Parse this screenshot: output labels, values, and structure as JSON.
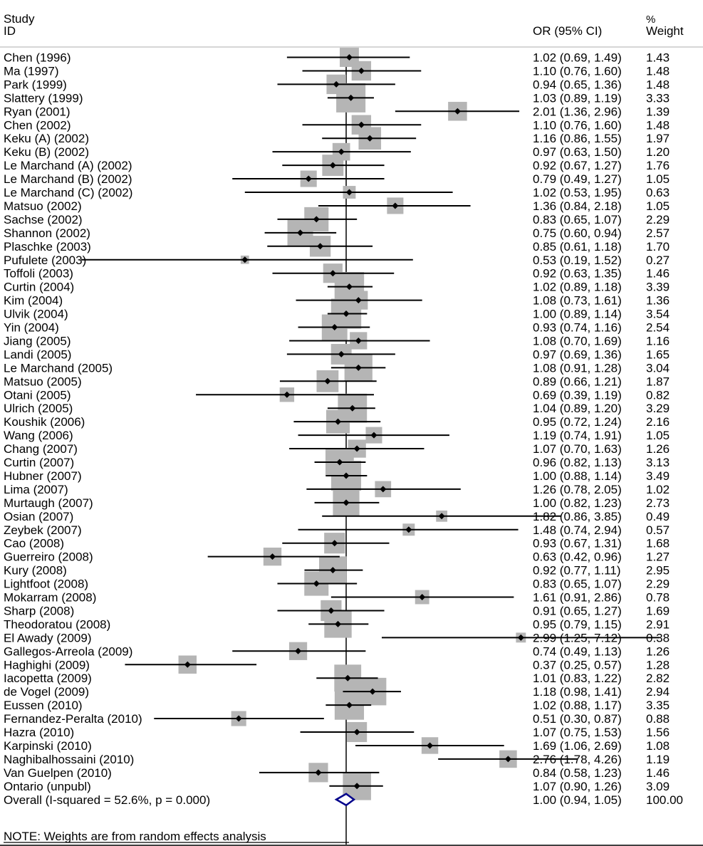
{
  "header": {
    "study_label": "Study",
    "id_label": "ID",
    "or_label": "OR (95% CI)",
    "pct_label": "%",
    "weight_label": "Weight"
  },
  "note": "NOTE: Weights are from random effects analysis",
  "chart_data": {
    "type": "forest",
    "title": "",
    "xscale": "log",
    "xlim": [
      0.14,
      12.0
    ],
    "null_line": 1.0,
    "grid": false,
    "legend": "none",
    "colors": {
      "square": "#b5b5b5",
      "point": "#000000",
      "diamond": "#00008b"
    },
    "studies": [
      {
        "id": "Chen (1996)",
        "or": 1.02,
        "lo": 0.69,
        "hi": 1.49,
        "weight": 1.43,
        "label": "1.02 (0.69, 1.49)",
        "wlabel": "1.43"
      },
      {
        "id": "Ma (1997)",
        "or": 1.1,
        "lo": 0.76,
        "hi": 1.6,
        "weight": 1.48,
        "label": "1.10 (0.76, 1.60)",
        "wlabel": "1.48"
      },
      {
        "id": "Park (1999)",
        "or": 0.94,
        "lo": 0.65,
        "hi": 1.36,
        "weight": 1.48,
        "label": "0.94 (0.65, 1.36)",
        "wlabel": "1.48"
      },
      {
        "id": "Slattery (1999)",
        "or": 1.03,
        "lo": 0.89,
        "hi": 1.19,
        "weight": 3.33,
        "label": "1.03 (0.89, 1.19)",
        "wlabel": "3.33"
      },
      {
        "id": "Ryan (2001)",
        "or": 2.01,
        "lo": 1.36,
        "hi": 2.96,
        "weight": 1.39,
        "label": "2.01 (1.36, 2.96)",
        "wlabel": "1.39"
      },
      {
        "id": "Chen (2002)",
        "or": 1.1,
        "lo": 0.76,
        "hi": 1.6,
        "weight": 1.48,
        "label": "1.10 (0.76, 1.60)",
        "wlabel": "1.48"
      },
      {
        "id": "Keku (A) (2002)",
        "or": 1.16,
        "lo": 0.86,
        "hi": 1.55,
        "weight": 1.97,
        "label": "1.16 (0.86, 1.55)",
        "wlabel": "1.97"
      },
      {
        "id": "Keku (B) (2002)",
        "or": 0.97,
        "lo": 0.63,
        "hi": 1.5,
        "weight": 1.2,
        "label": "0.97 (0.63, 1.50)",
        "wlabel": "1.20"
      },
      {
        "id": "Le Marchand (A) (2002)",
        "or": 0.92,
        "lo": 0.67,
        "hi": 1.27,
        "weight": 1.76,
        "label": "0.92 (0.67, 1.27)",
        "wlabel": "1.76"
      },
      {
        "id": "Le Marchand (B) (2002)",
        "or": 0.79,
        "lo": 0.49,
        "hi": 1.27,
        "weight": 1.05,
        "label": "0.79 (0.49, 1.27)",
        "wlabel": "1.05"
      },
      {
        "id": "Le Marchand (C) (2002)",
        "or": 1.02,
        "lo": 0.53,
        "hi": 1.95,
        "weight": 0.63,
        "label": "1.02 (0.53, 1.95)",
        "wlabel": "0.63"
      },
      {
        "id": "Matsuo (2002)",
        "or": 1.36,
        "lo": 0.84,
        "hi": 2.18,
        "weight": 1.05,
        "label": "1.36 (0.84, 2.18)",
        "wlabel": "1.05"
      },
      {
        "id": "Sachse (2002)",
        "or": 0.83,
        "lo": 0.65,
        "hi": 1.07,
        "weight": 2.29,
        "label": "0.83 (0.65, 1.07)",
        "wlabel": "2.29"
      },
      {
        "id": "Shannon (2002)",
        "or": 0.75,
        "lo": 0.6,
        "hi": 0.94,
        "weight": 2.57,
        "label": "0.75 (0.60, 0.94)",
        "wlabel": "2.57"
      },
      {
        "id": "Plaschke (2003)",
        "or": 0.85,
        "lo": 0.61,
        "hi": 1.18,
        "weight": 1.7,
        "label": "0.85 (0.61, 1.18)",
        "wlabel": "1.70"
      },
      {
        "id": "Pufulete (2003)",
        "or": 0.53,
        "lo": 0.19,
        "hi": 1.52,
        "weight": 0.27,
        "label": "0.53 (0.19, 1.52)",
        "wlabel": "0.27"
      },
      {
        "id": "Toffoli (2003)",
        "or": 0.92,
        "lo": 0.63,
        "hi": 1.35,
        "weight": 1.46,
        "label": "0.92 (0.63, 1.35)",
        "wlabel": "1.46"
      },
      {
        "id": "Curtin (2004)",
        "or": 1.02,
        "lo": 0.89,
        "hi": 1.18,
        "weight": 3.39,
        "label": "1.02 (0.89, 1.18)",
        "wlabel": "3.39"
      },
      {
        "id": "Kim (2004)",
        "or": 1.08,
        "lo": 0.73,
        "hi": 1.61,
        "weight": 1.36,
        "label": "1.08 (0.73, 1.61)",
        "wlabel": "1.36"
      },
      {
        "id": "Ulvik (2004)",
        "or": 1.0,
        "lo": 0.89,
        "hi": 1.14,
        "weight": 3.54,
        "label": "1.00 (0.89, 1.14)",
        "wlabel": "3.54"
      },
      {
        "id": "Yin (2004)",
        "or": 0.93,
        "lo": 0.74,
        "hi": 1.16,
        "weight": 2.54,
        "label": "0.93 (0.74, 1.16)",
        "wlabel": "2.54"
      },
      {
        "id": "Jiang (2005)",
        "or": 1.08,
        "lo": 0.7,
        "hi": 1.69,
        "weight": 1.16,
        "label": "1.08 (0.70, 1.69)",
        "wlabel": "1.16"
      },
      {
        "id": "Landi (2005)",
        "or": 0.97,
        "lo": 0.69,
        "hi": 1.36,
        "weight": 1.65,
        "label": "0.97 (0.69, 1.36)",
        "wlabel": "1.65"
      },
      {
        "id": "Le Marchand (2005)",
        "or": 1.08,
        "lo": 0.91,
        "hi": 1.28,
        "weight": 3.04,
        "label": "1.08 (0.91, 1.28)",
        "wlabel": "3.04"
      },
      {
        "id": "Matsuo (2005)",
        "or": 0.89,
        "lo": 0.66,
        "hi": 1.21,
        "weight": 1.87,
        "label": "0.89 (0.66, 1.21)",
        "wlabel": "1.87"
      },
      {
        "id": "Otani (2005)",
        "or": 0.69,
        "lo": 0.39,
        "hi": 1.19,
        "weight": 0.82,
        "label": "0.69 (0.39, 1.19)",
        "wlabel": "0.82"
      },
      {
        "id": "Ulrich (2005)",
        "or": 1.04,
        "lo": 0.89,
        "hi": 1.2,
        "weight": 3.29,
        "label": "1.04 (0.89, 1.20)",
        "wlabel": "3.29"
      },
      {
        "id": "Koushik (2006)",
        "or": 0.95,
        "lo": 0.72,
        "hi": 1.24,
        "weight": 2.16,
        "label": "0.95 (0.72, 1.24)",
        "wlabel": "2.16"
      },
      {
        "id": "Wang (2006)",
        "or": 1.19,
        "lo": 0.74,
        "hi": 1.91,
        "weight": 1.05,
        "label": "1.19 (0.74, 1.91)",
        "wlabel": "1.05"
      },
      {
        "id": "Chang (2007)",
        "or": 1.07,
        "lo": 0.7,
        "hi": 1.63,
        "weight": 1.26,
        "label": "1.07 (0.70, 1.63)",
        "wlabel": "1.26"
      },
      {
        "id": "Curtin (2007)",
        "or": 0.96,
        "lo": 0.82,
        "hi": 1.13,
        "weight": 3.13,
        "label": "0.96 (0.82, 1.13)",
        "wlabel": "3.13"
      },
      {
        "id": "Hubner (2007)",
        "or": 1.0,
        "lo": 0.88,
        "hi": 1.14,
        "weight": 3.49,
        "label": "1.00 (0.88, 1.14)",
        "wlabel": "3.49"
      },
      {
        "id": "Lima (2007)",
        "or": 1.26,
        "lo": 0.78,
        "hi": 2.05,
        "weight": 1.02,
        "label": "1.26 (0.78, 2.05)",
        "wlabel": "1.02"
      },
      {
        "id": "Murtaugh (2007)",
        "or": 1.0,
        "lo": 0.82,
        "hi": 1.23,
        "weight": 2.73,
        "label": "1.00 (0.82, 1.23)",
        "wlabel": "2.73"
      },
      {
        "id": "Osian (2007)",
        "or": 1.82,
        "lo": 0.86,
        "hi": 3.85,
        "weight": 0.49,
        "label": "1.82 (0.86, 3.85)",
        "wlabel": "0.49"
      },
      {
        "id": "Zeybek (2007)",
        "or": 1.48,
        "lo": 0.74,
        "hi": 2.94,
        "weight": 0.57,
        "label": "1.48 (0.74, 2.94)",
        "wlabel": "0.57"
      },
      {
        "id": "Cao (2008)",
        "or": 0.93,
        "lo": 0.67,
        "hi": 1.31,
        "weight": 1.68,
        "label": "0.93 (0.67, 1.31)",
        "wlabel": "1.68"
      },
      {
        "id": "Guerreiro (2008)",
        "or": 0.63,
        "lo": 0.42,
        "hi": 0.96,
        "weight": 1.27,
        "label": "0.63 (0.42, 0.96)",
        "wlabel": "1.27"
      },
      {
        "id": "Kury (2008)",
        "or": 0.92,
        "lo": 0.77,
        "hi": 1.11,
        "weight": 2.95,
        "label": "0.92 (0.77, 1.11)",
        "wlabel": "2.95"
      },
      {
        "id": "Lightfoot (2008)",
        "or": 0.83,
        "lo": 0.65,
        "hi": 1.07,
        "weight": 2.29,
        "label": "0.83 (0.65, 1.07)",
        "wlabel": "2.29"
      },
      {
        "id": "Mokarram (2008)",
        "or": 1.61,
        "lo": 0.91,
        "hi": 2.86,
        "weight": 0.78,
        "label": "1.61 (0.91, 2.86)",
        "wlabel": "0.78"
      },
      {
        "id": "Sharp (2008)",
        "or": 0.91,
        "lo": 0.65,
        "hi": 1.27,
        "weight": 1.69,
        "label": "0.91 (0.65, 1.27)",
        "wlabel": "1.69"
      },
      {
        "id": "Theodoratou (2008)",
        "or": 0.95,
        "lo": 0.79,
        "hi": 1.15,
        "weight": 2.91,
        "label": "0.95 (0.79, 1.15)",
        "wlabel": "2.91"
      },
      {
        "id": "El Awady (2009)",
        "or": 2.99,
        "lo": 1.25,
        "hi": 7.12,
        "weight": 0.38,
        "label": "2.99 (1.25, 7.12)",
        "wlabel": "0.38"
      },
      {
        "id": "Gallegos-Arreola (2009)",
        "or": 0.74,
        "lo": 0.49,
        "hi": 1.13,
        "weight": 1.26,
        "label": "0.74 (0.49, 1.13)",
        "wlabel": "1.26"
      },
      {
        "id": "Haghighi (2009)",
        "or": 0.37,
        "lo": 0.25,
        "hi": 0.57,
        "weight": 1.28,
        "label": "0.37 (0.25, 0.57)",
        "wlabel": "1.28"
      },
      {
        "id": "Iacopetta (2009)",
        "or": 1.01,
        "lo": 0.83,
        "hi": 1.22,
        "weight": 2.82,
        "label": "1.01 (0.83, 1.22)",
        "wlabel": "2.82"
      },
      {
        "id": "de Vogel (2009)",
        "or": 1.18,
        "lo": 0.98,
        "hi": 1.41,
        "weight": 2.94,
        "label": "1.18 (0.98, 1.41)",
        "wlabel": "2.94"
      },
      {
        "id": "Eussen (2010)",
        "or": 1.02,
        "lo": 0.88,
        "hi": 1.17,
        "weight": 3.35,
        "label": "1.02 (0.88, 1.17)",
        "wlabel": "3.35"
      },
      {
        "id": "Fernandez-Peralta (2010)",
        "or": 0.51,
        "lo": 0.3,
        "hi": 0.87,
        "weight": 0.88,
        "label": "0.51 (0.30, 0.87)",
        "wlabel": "0.88"
      },
      {
        "id": "Hazra (2010)",
        "or": 1.07,
        "lo": 0.75,
        "hi": 1.53,
        "weight": 1.56,
        "label": "1.07 (0.75, 1.53)",
        "wlabel": "1.56"
      },
      {
        "id": "Karpinski (2010)",
        "or": 1.69,
        "lo": 1.06,
        "hi": 2.69,
        "weight": 1.08,
        "label": "1.69 (1.06, 2.69)",
        "wlabel": "1.08"
      },
      {
        "id": "Naghibalhossaini (2010)",
        "or": 2.76,
        "lo": 1.78,
        "hi": 4.26,
        "weight": 1.19,
        "label": "2.76 (1.78, 4.26)",
        "wlabel": "1.19"
      },
      {
        "id": "Van Guelpen (2010)",
        "or": 0.84,
        "lo": 0.58,
        "hi": 1.23,
        "weight": 1.46,
        "label": "0.84 (0.58, 1.23)",
        "wlabel": "1.46"
      },
      {
        "id": "Ontario (unpubl)",
        "or": 1.07,
        "lo": 0.9,
        "hi": 1.26,
        "weight": 3.09,
        "label": "1.07 (0.90, 1.26)",
        "wlabel": "3.09"
      }
    ],
    "overall": {
      "id": "Overall  (I-squared = 52.6%, p = 0.000)",
      "or": 1.0,
      "lo": 0.94,
      "hi": 1.05,
      "label": "1.00 (0.94, 1.05)",
      "wlabel": "100.00",
      "i_squared": 52.6,
      "p": 0.0
    }
  }
}
